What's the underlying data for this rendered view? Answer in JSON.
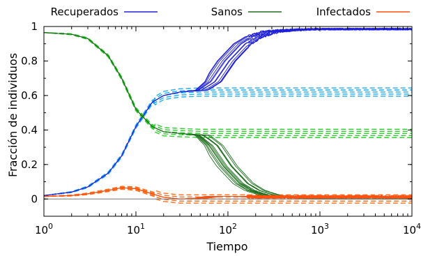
{
  "chart_data": {
    "type": "line",
    "xlabel": "Tiempo",
    "ylabel": "Fracción de individuos",
    "x_scale": "log",
    "xlim": [
      1,
      10000
    ],
    "ylim": [
      -0.1,
      1.0
    ],
    "grid": false,
    "legend_placement": "top",
    "x_ticks": [
      {
        "value": 1,
        "base": "10",
        "exp": "0"
      },
      {
        "value": 10,
        "base": "10",
        "exp": "1"
      },
      {
        "value": 100,
        "base": "10",
        "exp": "2"
      },
      {
        "value": 1000,
        "base": "10",
        "exp": "3"
      },
      {
        "value": 10000,
        "base": "10",
        "exp": "4"
      }
    ],
    "y_ticks": [
      {
        "value": 0,
        "label": "0"
      },
      {
        "value": 0.2,
        "label": "0.2"
      },
      {
        "value": 0.4,
        "label": "0.4"
      },
      {
        "value": 0.6,
        "label": "0.6"
      },
      {
        "value": 0.8,
        "label": "0.8"
      },
      {
        "value": 1,
        "label": "1"
      }
    ],
    "series": [
      {
        "name": "Recuperados",
        "color": "#2020d8",
        "x": [
          1,
          2,
          3,
          5,
          7,
          10,
          15,
          20,
          30,
          50,
          70,
          100,
          150,
          200,
          300,
          500,
          1000,
          3000,
          10000
        ],
        "y": [
          0.02,
          0.04,
          0.07,
          0.15,
          0.25,
          0.42,
          0.56,
          0.6,
          0.62,
          0.63,
          0.68,
          0.8,
          0.9,
          0.94,
          0.97,
          0.98,
          0.985,
          0.985,
          0.985
        ]
      },
      {
        "name": "Sanos",
        "color": "#1e6e1e",
        "x": [
          1,
          2,
          3,
          5,
          7,
          10,
          15,
          20,
          30,
          50,
          70,
          100,
          150,
          200,
          300,
          500,
          1000,
          3000,
          10000
        ],
        "y": [
          0.965,
          0.955,
          0.93,
          0.83,
          0.7,
          0.52,
          0.42,
          0.39,
          0.38,
          0.37,
          0.31,
          0.19,
          0.09,
          0.05,
          0.02,
          0.01,
          0.0,
          0.0,
          0.0
        ]
      },
      {
        "name": "Infectados",
        "color": "#ff5010",
        "x": [
          1,
          2,
          3,
          5,
          7,
          10,
          15,
          20,
          30,
          50,
          70,
          100,
          150,
          200,
          300,
          500,
          1000,
          3000,
          10000
        ],
        "y": [
          0.015,
          0.02,
          0.03,
          0.05,
          0.065,
          0.06,
          0.03,
          0.01,
          0.0,
          0.005,
          0.015,
          0.015,
          0.015,
          0.012,
          0.012,
          0.012,
          0.012,
          0.012,
          0.012
        ]
      }
    ],
    "dashed_reference": {
      "x": [
        1,
        2,
        3,
        5,
        7,
        10,
        15,
        20,
        30,
        50,
        70,
        100,
        1000,
        10000
      ],
      "recovered_y": [
        0.02,
        0.04,
        0.07,
        0.15,
        0.25,
        0.42,
        0.56,
        0.6,
        0.615,
        0.62,
        0.62,
        0.62,
        0.62,
        0.62
      ],
      "susceptible_y": [
        0.965,
        0.955,
        0.93,
        0.83,
        0.7,
        0.52,
        0.42,
        0.39,
        0.385,
        0.38,
        0.38,
        0.38,
        0.38,
        0.38
      ],
      "infected_y": [
        0.015,
        0.02,
        0.03,
        0.05,
        0.065,
        0.06,
        0.03,
        0.01,
        0.0,
        0.0,
        0.0,
        0.0,
        0.0,
        0.0
      ],
      "recovered_color": "#22aaee",
      "susceptible_color": "#33cc33",
      "infected_color": "#ff7020"
    },
    "zero_line_color": "#777777"
  }
}
